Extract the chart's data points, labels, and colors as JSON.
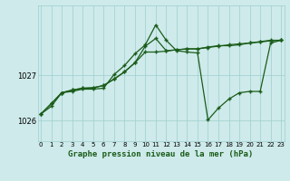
{
  "bg_color": "#ceeaea",
  "grid_color": "#9ecece",
  "line_color": "#1a5c1a",
  "title": "Graphe pression niveau de la mer (hPa)",
  "x_ticks": [
    0,
    1,
    2,
    3,
    4,
    5,
    6,
    7,
    8,
    9,
    10,
    11,
    12,
    13,
    14,
    15,
    16,
    17,
    18,
    19,
    20,
    21,
    22,
    23
  ],
  "ylim": [
    1025.55,
    1028.55
  ],
  "yticks": [
    1026,
    1027
  ],
  "series1_x": [
    0,
    1,
    2,
    3,
    4,
    5,
    6,
    7,
    8,
    9,
    10,
    11,
    12,
    13,
    14,
    15,
    16,
    17,
    18,
    19,
    20,
    21,
    22,
    23
  ],
  "series1_y": [
    1026.15,
    1026.38,
    1026.62,
    1026.68,
    1026.72,
    1026.73,
    1026.78,
    1026.92,
    1027.08,
    1027.28,
    1027.52,
    1027.52,
    1027.54,
    1027.57,
    1027.59,
    1027.59,
    1027.62,
    1027.65,
    1027.68,
    1027.7,
    1027.72,
    1027.74,
    1027.77,
    1027.78
  ],
  "series2_x": [
    0,
    1,
    2,
    3,
    4,
    5,
    6,
    7,
    8,
    9,
    10,
    11,
    12,
    13,
    14,
    15,
    16,
    17,
    18,
    19,
    20,
    21,
    22,
    23
  ],
  "series2_y": [
    1026.15,
    1026.38,
    1026.62,
    1026.68,
    1026.72,
    1026.73,
    1026.78,
    1026.92,
    1027.08,
    1027.28,
    1027.65,
    1027.82,
    1027.55,
    1027.57,
    1027.59,
    1027.59,
    1027.63,
    1027.66,
    1027.66,
    1027.68,
    1027.72,
    1027.75,
    1027.78,
    1027.78
  ],
  "series3_x": [
    0,
    1,
    2,
    3,
    4,
    5,
    6,
    7,
    8,
    9,
    10,
    11,
    12,
    13,
    14,
    15,
    16,
    17,
    18,
    19,
    20,
    21,
    22,
    23
  ],
  "series3_y": [
    1026.15,
    1026.32,
    1026.62,
    1026.65,
    1026.7,
    1026.7,
    1026.72,
    1027.02,
    1027.22,
    1027.48,
    1027.68,
    1028.12,
    1027.78,
    1027.55,
    1027.52,
    1027.5,
    1026.02,
    1026.28,
    1026.48,
    1026.62,
    1026.65,
    1026.65,
    1027.72,
    1027.78
  ]
}
